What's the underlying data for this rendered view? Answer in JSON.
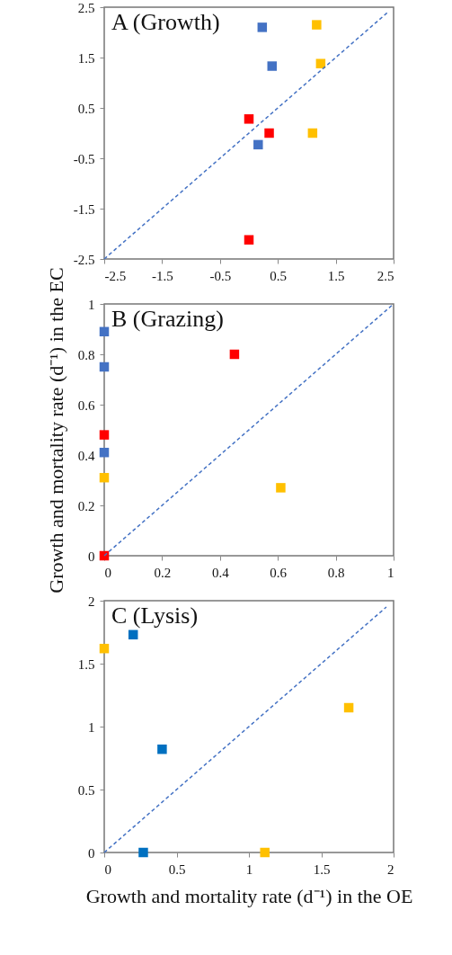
{
  "chart_data": [
    {
      "type": "scatter",
      "annotations": [
        "A (Growth)"
      ],
      "xlim": [
        -2.5,
        2.5
      ],
      "ylim": [
        -2.5,
        2.5
      ],
      "xticks": [
        -2.5,
        -1.5,
        -0.5,
        0.5,
        1.5,
        2.5
      ],
      "yticks": [
        -2.5,
        -1.5,
        -0.5,
        0.5,
        1.5,
        2.5
      ],
      "grid": false,
      "marker": "square",
      "series": [
        {
          "color": "#4472c4",
          "x": [
            0.23,
            0.4,
            0.16
          ],
          "values": [
            2.1,
            1.33,
            -0.23
          ]
        },
        {
          "color": "#ffc000",
          "x": [
            1.17,
            1.24,
            1.1
          ],
          "values": [
            2.15,
            1.38,
            0.0
          ]
        },
        {
          "color": "#ff0000",
          "x": [
            0.0,
            0.35,
            0.0
          ],
          "values": [
            0.28,
            0.0,
            -2.12
          ]
        },
        {
          "type": "line",
          "line_style": "dashed",
          "marker": "none",
          "color": "#4472c4",
          "x": [
            -2.5,
            2.4
          ],
          "values": [
            -2.5,
            2.4
          ]
        }
      ]
    },
    {
      "type": "scatter",
      "annotations": [
        "B (Grazing)"
      ],
      "ylabel": "Growth and mortality rate  (d⁻¹) in the EC",
      "xlim": [
        0,
        1
      ],
      "ylim": [
        0,
        1
      ],
      "xticks": [
        0,
        0.2,
        0.4,
        0.6,
        0.8,
        1
      ],
      "yticks": [
        0,
        0.2,
        0.4,
        0.6,
        0.8,
        1
      ],
      "grid": false,
      "marker": "square",
      "series": [
        {
          "color": "#4472c4",
          "x": [
            0,
            0,
            0
          ],
          "values": [
            0.89,
            0.75,
            0.41
          ]
        },
        {
          "color": "#ff0000",
          "x": [
            0,
            0.45,
            0
          ],
          "values": [
            0.48,
            0.8,
            0
          ]
        },
        {
          "color": "#ffc000",
          "x": [
            0,
            0.61
          ],
          "values": [
            0.31,
            0.27
          ]
        },
        {
          "type": "line",
          "line_style": "dashed",
          "marker": "none",
          "color": "#4472c4",
          "x": [
            0,
            1
          ],
          "values": [
            0,
            1
          ]
        }
      ]
    },
    {
      "type": "scatter",
      "annotations": [
        "C (Lysis)"
      ],
      "xlabel": "Growth and mortality rate (d⁻¹) in the OE",
      "xlim": [
        0,
        2
      ],
      "ylim": [
        0,
        2
      ],
      "xticks": [
        0,
        0.5,
        1,
        1.5,
        2
      ],
      "yticks": [
        0,
        0.5,
        1,
        1.5,
        2
      ],
      "grid": false,
      "marker": "square",
      "series": [
        {
          "color": "#0070c0",
          "x": [
            0.2,
            0.4,
            0.27
          ],
          "values": [
            1.73,
            0.82,
            0
          ]
        },
        {
          "color": "#ffc000",
          "x": [
            0,
            1.69,
            1.11
          ],
          "values": [
            1.62,
            1.15,
            0
          ]
        },
        {
          "type": "line",
          "line_style": "dashed",
          "marker": "none",
          "color": "#4472c4",
          "x": [
            0,
            1.95
          ],
          "values": [
            0,
            1.95
          ]
        }
      ]
    }
  ]
}
